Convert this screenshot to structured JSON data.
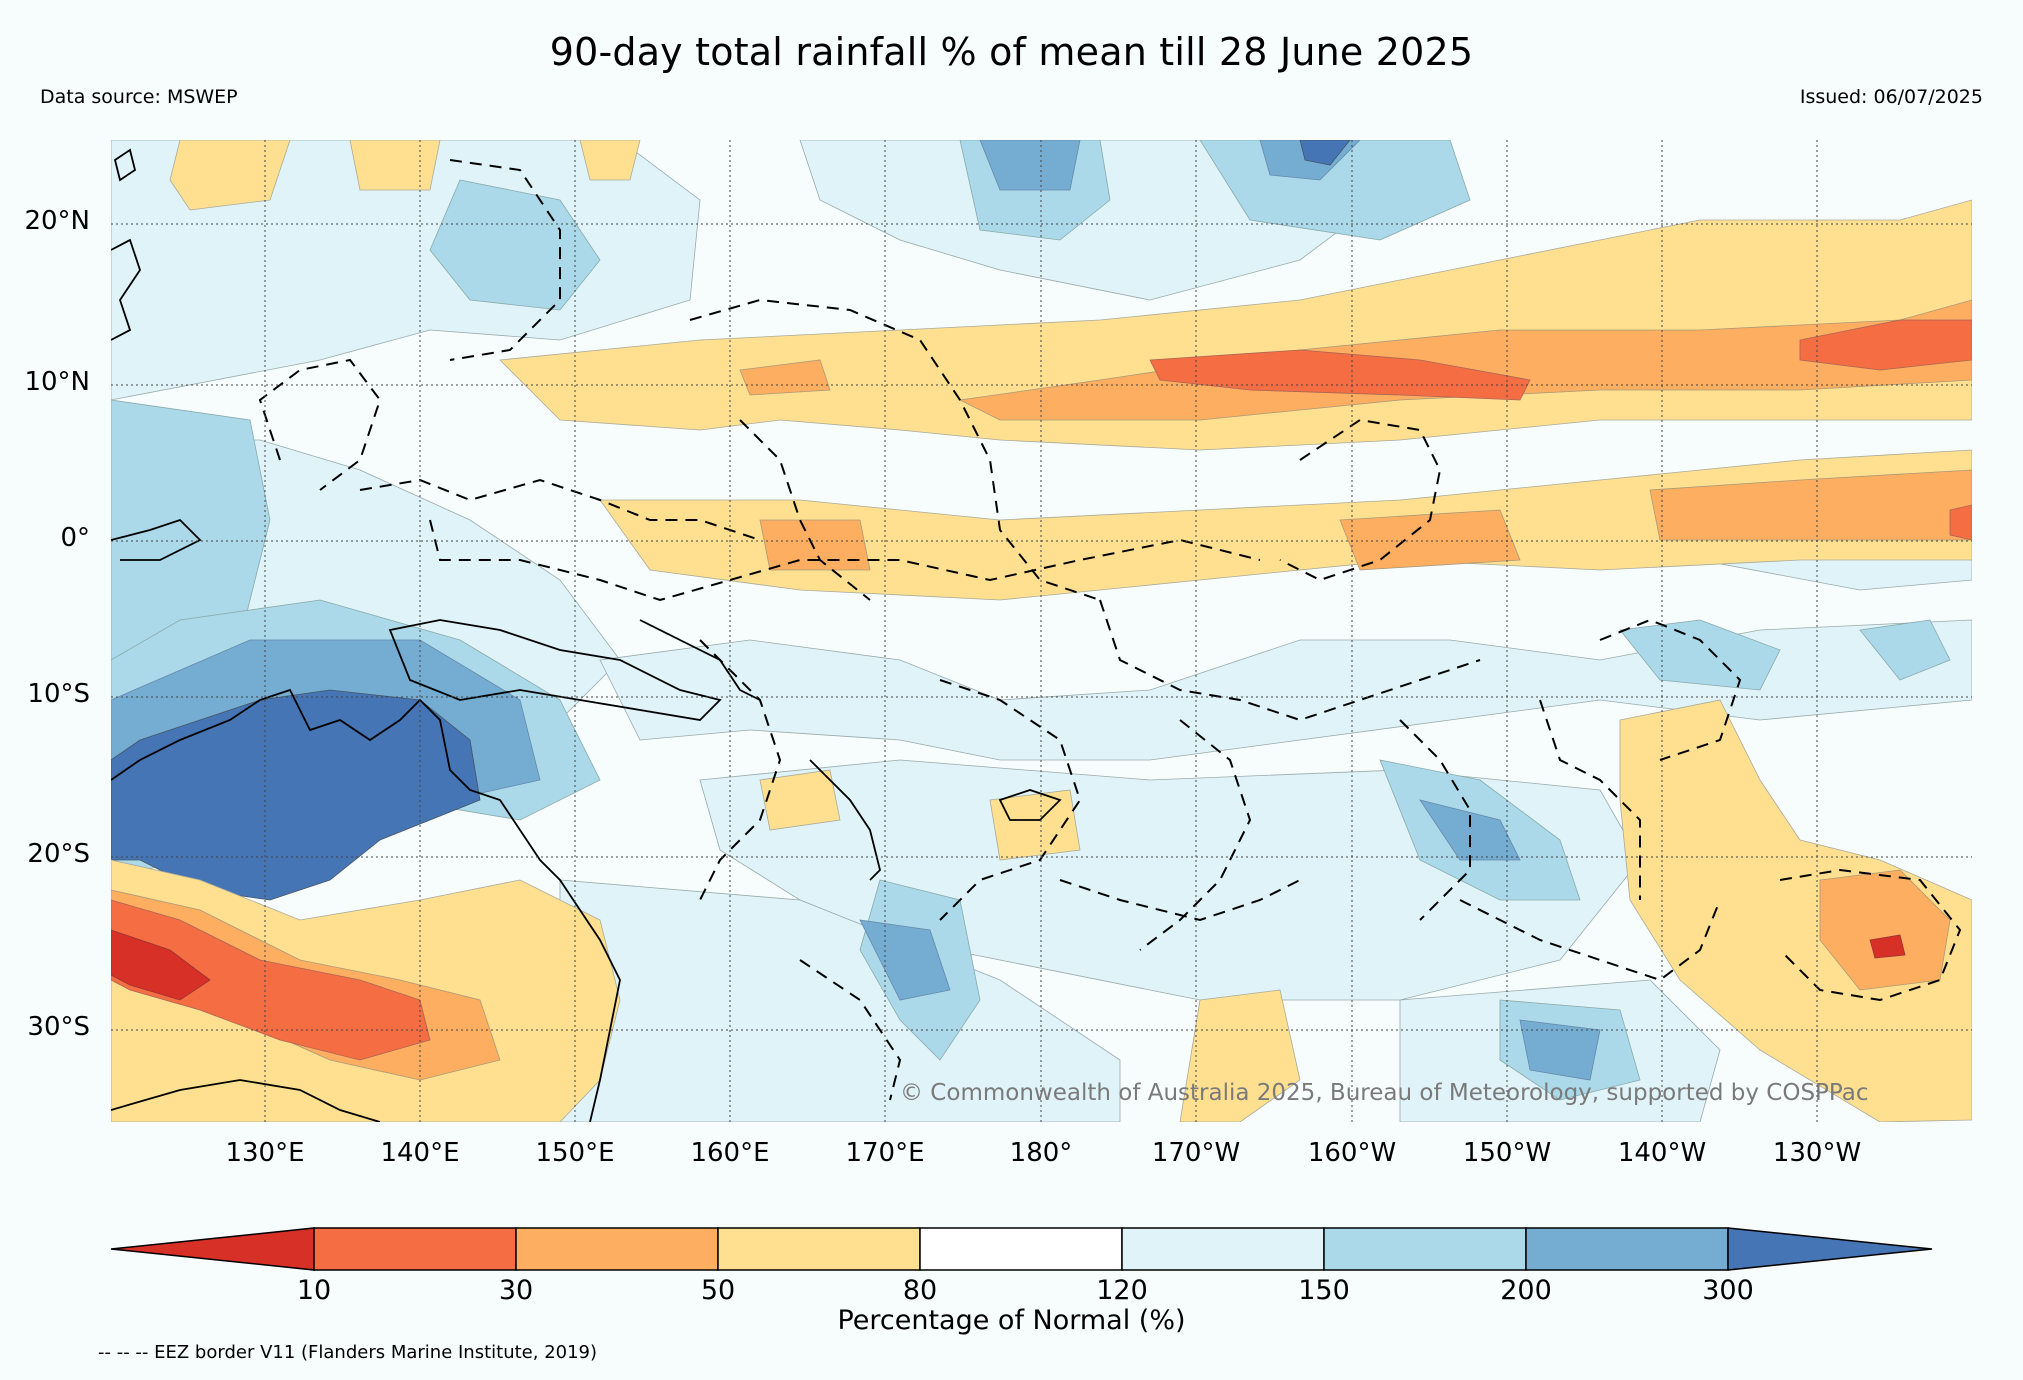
{
  "title": "90-day total rainfall % of mean till 28 June 2025",
  "data_source": "Data source: MSWEP",
  "issued": "Issued: 06/07/2025",
  "copyright": "© Commonwealth of Australia 2025, Bureau of Meteorology, supported by COSPPac",
  "lat_labels": [
    "20°N",
    "10°N",
    "0°",
    "10°S",
    "20°S",
    "30°S"
  ],
  "lon_labels": [
    "130°E",
    "140°E",
    "150°E",
    "160°E",
    "170°E",
    "180°",
    "170°W",
    "160°W",
    "150°W",
    "140°W",
    "130°W"
  ],
  "colorbar": {
    "title": "Percentage of Normal (%)",
    "ticks": [
      "10",
      "30",
      "50",
      "80",
      "120",
      "150",
      "200",
      "300"
    ],
    "colors": [
      "#d73027",
      "#f46d43",
      "#fdae61",
      "#fee090",
      "#ffffff",
      "#e0f3f8",
      "#abd9e9",
      "#74add1",
      "#4575b4"
    ]
  },
  "eez_note": "-- -- -- EEZ border V11 (Flanders Marine Institute, 2019)"
}
